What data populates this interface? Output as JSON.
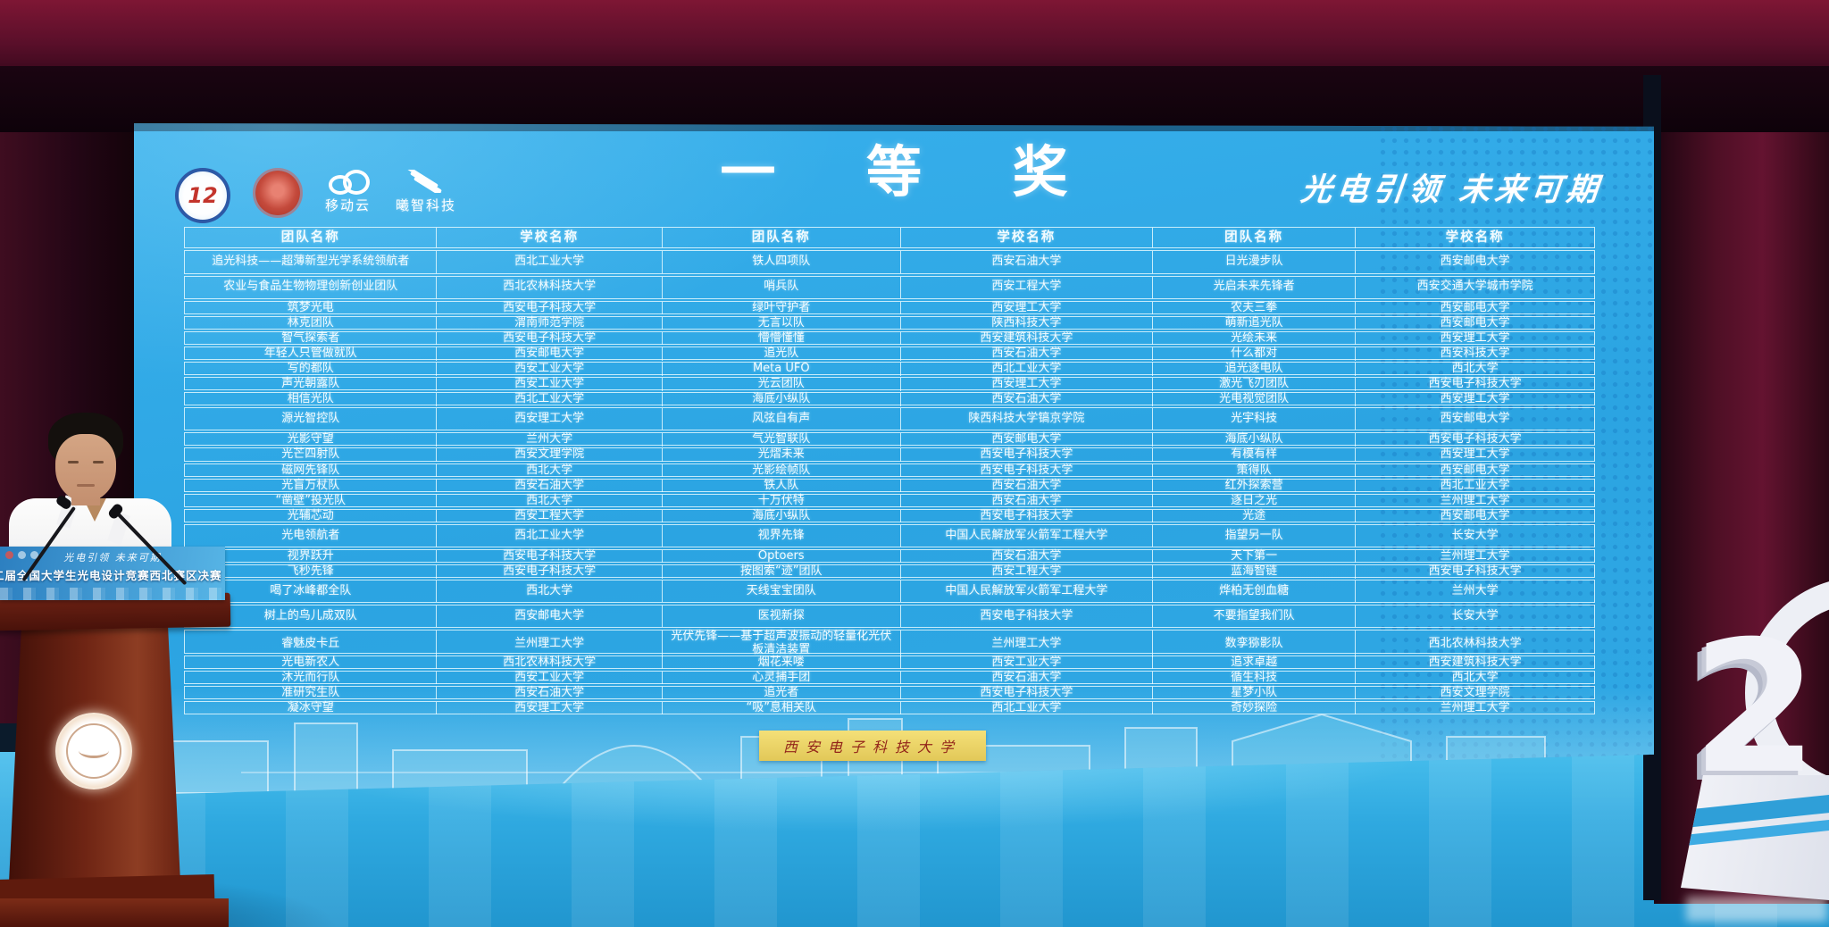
{
  "screen": {
    "title": "一 等 奖",
    "slogan": "光电引领  未来可期",
    "bottom_banner": "西安电子科技大学",
    "logos": [
      {
        "name": "competition-12-logo",
        "label": "12"
      },
      {
        "name": "society-seal-logo",
        "label": ""
      },
      {
        "name": "mobile-cloud-logo",
        "label": "移动云"
      },
      {
        "name": "xizhi-tech-logo",
        "label": "曦智科技"
      }
    ],
    "table": {
      "header": [
        "团队名称",
        "学校名称",
        "团队名称",
        "学校名称",
        "团队名称",
        "学校名称"
      ],
      "rows": [
        {
          "tall": true,
          "cells": [
            "追光科技——超薄新型光学系统领航者",
            "西北工业大学",
            "铁人四项队",
            "西安石油大学",
            "日光漫步队",
            "西安邮电大学"
          ]
        },
        {
          "tall": true,
          "cells": [
            "农业与食品生物物理创新创业团队",
            "西北农林科技大学",
            "哨兵队",
            "西安工程大学",
            "光启未来先锋者",
            "西安交通大学城市学院"
          ]
        },
        {
          "tall": false,
          "cells": [
            "筑梦光电",
            "西安电子科技大学",
            "绿叶守护者",
            "西安理工大学",
            "农夫三拳",
            "西安邮电大学"
          ]
        },
        {
          "tall": false,
          "cells": [
            "林克团队",
            "渭南师范学院",
            "无言以队",
            "陕西科技大学",
            "萌新追光队",
            "西安邮电大学"
          ]
        },
        {
          "tall": false,
          "cells": [
            "智气探索者",
            "西安电子科技大学",
            "懵懵懂懂",
            "西安建筑科技大学",
            "光绘未来",
            "西安理工大学"
          ]
        },
        {
          "tall": false,
          "cells": [
            "年轻人只管做就队",
            "西安邮电大学",
            "追光队",
            "西安石油大学",
            "什么都对",
            "西安科技大学"
          ]
        },
        {
          "tall": false,
          "cells": [
            "写的都队",
            "西安工业大学",
            "Meta UFO",
            "西北工业大学",
            "追光逐电队",
            "西北大学"
          ]
        },
        {
          "tall": false,
          "cells": [
            "声光朝露队",
            "西安工业大学",
            "光云团队",
            "西安理工大学",
            "激光飞刃团队",
            "西安电子科技大学"
          ]
        },
        {
          "tall": false,
          "cells": [
            "相信光队",
            "西北工业大学",
            "海底小纵队",
            "西安石油大学",
            "光电视觉团队",
            "西安理工大学"
          ]
        },
        {
          "tall": true,
          "cells": [
            "源光智控队",
            "西安理工大学",
            "风弦自有声",
            "陕西科技大学镐京学院",
            "光宇科技",
            "西安邮电大学"
          ]
        },
        {
          "tall": false,
          "cells": [
            "光影守望",
            "兰州大学",
            "气光智联队",
            "西安邮电大学",
            "海底小纵队",
            "西安电子科技大学"
          ]
        },
        {
          "tall": false,
          "cells": [
            "光芒四射队",
            "西安文理学院",
            "光熠未来",
            "西安电子科技大学",
            "有模有样",
            "西安理工大学"
          ]
        },
        {
          "tall": false,
          "cells": [
            "磁网先锋队",
            "西北大学",
            "光影绘帧队",
            "西安电子科技大学",
            "策得队",
            "西安邮电大学"
          ]
        },
        {
          "tall": false,
          "cells": [
            "光盲万杖队",
            "西安石油大学",
            "铁人队",
            "西安石油大学",
            "红外探索营",
            "西北工业大学"
          ]
        },
        {
          "tall": false,
          "cells": [
            "“凿壁”投光队",
            "西北大学",
            "十万伏特",
            "西安石油大学",
            "逐日之光",
            "兰州理工大学"
          ]
        },
        {
          "tall": false,
          "cells": [
            "光辅芯动",
            "西安工程大学",
            "海底小纵队",
            "西安电子科技大学",
            "光途",
            "西安邮电大学"
          ]
        },
        {
          "tall": true,
          "cells": [
            "光电领航者",
            "西北工业大学",
            "视界先锋",
            "中国人民解放军火箭军工程大学",
            "指望另一队",
            "长安大学"
          ]
        },
        {
          "tall": false,
          "cells": [
            "视界跃升",
            "西安电子科技大学",
            "Optoers",
            "西安石油大学",
            "天下第一",
            "兰州理工大学"
          ]
        },
        {
          "tall": false,
          "cells": [
            "飞秒先锋",
            "西安电子科技大学",
            "按图索“迹”团队",
            "西安工程大学",
            "蓝海智链",
            "西安电子科技大学"
          ]
        },
        {
          "tall": true,
          "cells": [
            "喝了冰峰都全队",
            "西北大学",
            "天线宝宝团队",
            "中国人民解放军火箭军工程大学",
            "烨柏无创血糖",
            "兰州大学"
          ]
        },
        {
          "tall": true,
          "cells": [
            "树上的鸟儿成双队",
            "西安邮电大学",
            "医视新探",
            "西安电子科技大学",
            "不要指望我们队",
            "长安大学"
          ]
        },
        {
          "tall": true,
          "cells": [
            "睿魅皮卡丘",
            "兰州理工大学",
            "光伏先锋——基于超声波振动的轻量化光伏板清洁装置",
            "兰州理工大学",
            "数孪猕影队",
            "西北农林科技大学"
          ]
        },
        {
          "tall": false,
          "cells": [
            "光电新农人",
            "西北农林科技大学",
            "烟花来喽",
            "西安工业大学",
            "追求卓越",
            "西安建筑科技大学"
          ]
        },
        {
          "tall": false,
          "cells": [
            "沐光而行队",
            "西安工业大学",
            "心灵捕手团",
            "西安石油大学",
            "循生科技",
            "西北大学"
          ]
        },
        {
          "tall": false,
          "cells": [
            "准研究生队",
            "西安石油大学",
            "追光者",
            "西安电子科技大学",
            "星梦小队",
            "西安文理学院"
          ]
        },
        {
          "tall": false,
          "cells": [
            "凝冰守望",
            "西安理工大学",
            "“吸”息相关队",
            "西北工业大学",
            "奇妙探险",
            "兰州理工大学"
          ]
        }
      ]
    }
  },
  "podium": {
    "banner_line1": "光电引领  未来可期",
    "banner_line2": "二届全国大学生光电设计竞赛西北赛区决赛"
  },
  "sculpture": {
    "number": "2"
  },
  "panel_label": "8",
  "colors": {
    "screen_blue": "#2ea8e4",
    "floor_blue": "#35b3e6",
    "curtain_maroon": "#5a0f2a",
    "banner_yellow": "#eed56a"
  }
}
